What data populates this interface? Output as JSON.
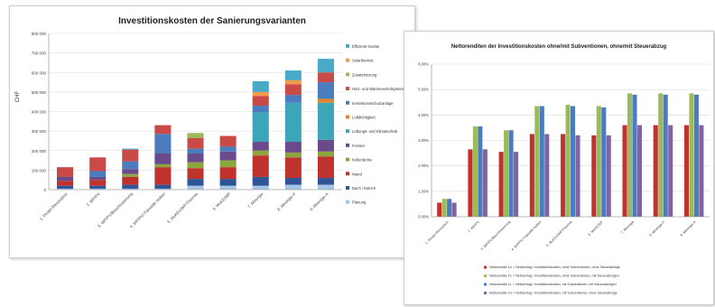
{
  "chart_data": [
    {
      "type": "bar",
      "stacked": true,
      "title": "Investitionskosten der Sanierungsvarianten",
      "ylabel": "CHF",
      "ylim": [
        0,
        800000
      ],
      "yticks": [
        "0",
        "100 000",
        "200 000",
        "300 000",
        "400 000",
        "500 000",
        "600 000",
        "700 000",
        "800 000"
      ],
      "grid": true,
      "legend_position": "right",
      "categories": [
        "1. Pinsel-Renovation",
        "2. WP/PV",
        "3. WP/PV/Beschlusserung",
        "4. WP/PV/ Fassade isoliert",
        "5. MuKEn/WP/Thermie",
        "6. MuKE/WP",
        "7. Minergie",
        "8. Minergie-P",
        "9. Minergie-A"
      ],
      "series": [
        {
          "name": "Planung",
          "color": "#a7c3e6",
          "values": [
            5000,
            5000,
            5000,
            5000,
            20000,
            20000,
            20000,
            25000,
            25000
          ]
        },
        {
          "name": "Dach / Estrich",
          "color": "#2f5597",
          "values": [
            15000,
            15000,
            20000,
            20000,
            35000,
            35000,
            45000,
            35000,
            35000
          ]
        },
        {
          "name": "Wand",
          "color": "#c0322e",
          "values": [
            25000,
            30000,
            40000,
            90000,
            55000,
            60000,
            110000,
            105000,
            110000
          ]
        },
        {
          "name": "Kellerdecke",
          "color": "#8aa63c",
          "values": [
            0,
            0,
            15000,
            15000,
            30000,
            35000,
            25000,
            25000,
            25000
          ]
        },
        {
          "name": "Fenster",
          "color": "#6b4a8c",
          "values": [
            20000,
            15000,
            25000,
            55000,
            45000,
            45000,
            45000,
            55000,
            60000
          ]
        },
        {
          "name": "Lüftungs- und Klimatechnik",
          "color": "#3aa6b8",
          "values": [
            0,
            0,
            0,
            0,
            0,
            0,
            150000,
            200000,
            190000
          ]
        },
        {
          "name": "Luftdichtigkeit",
          "color": "#e0862a",
          "values": [
            0,
            0,
            0,
            0,
            0,
            0,
            0,
            0,
            20000
          ]
        },
        {
          "name": "Immissionsschutzanlage",
          "color": "#4b7cc0",
          "values": [
            0,
            30000,
            40000,
            100000,
            25000,
            25000,
            35000,
            40000,
            85000
          ]
        },
        {
          "name": "Holz- und Wärmeverteilsystem",
          "color": "#c94a46",
          "values": [
            50000,
            70000,
            60000,
            45000,
            55000,
            55000,
            50000,
            55000,
            50000
          ]
        },
        {
          "name": "Zusatzheizung",
          "color": "#9bbb59",
          "values": [
            0,
            0,
            0,
            0,
            25000,
            0,
            0,
            0,
            0
          ]
        },
        {
          "name": "Solarthermie",
          "color": "#f29c4b",
          "values": [
            0,
            0,
            0,
            0,
            0,
            0,
            20000,
            20000,
            0
          ]
        },
        {
          "name": "Effizente Geräte",
          "color": "#49a9c6",
          "values": [
            0,
            0,
            5000,
            0,
            0,
            0,
            55000,
            50000,
            70000
          ]
        }
      ]
    },
    {
      "type": "bar",
      "title": "Nettorenditen der Investitionskosten ohne/mit Subventionen, ohne/mit Steuerabzug",
      "ylim": [
        0,
        6
      ],
      "yticks": [
        "0.00%",
        "1.00%",
        "2.00%",
        "3.00%",
        "4.00%",
        "5.00%",
        "6.00%"
      ],
      "grid": true,
      "legend_position": "bottom",
      "categories": [
        "1. Pinsel-Renovation",
        "2. WP/PV",
        "3. WP/PV/Beschlusserung",
        "4. WP/PV/ Fassade isoliert",
        "5. MuKEn/WP/Thermie",
        "6. MuKE/WP",
        "7. Minergie",
        "8. Minergie-P",
        "9. Minergie-A"
      ],
      "series": [
        {
          "name": "Nettorendite 1a",
          "description": "= Nettoertrag / Investitionskosten, ohne Subventionen, ohne Steuerabzüge",
          "color": "#c0322e",
          "values": [
            0.55,
            2.65,
            2.55,
            3.25,
            3.25,
            3.2,
            3.6,
            3.6,
            3.6
          ]
        },
        {
          "name": "Nettorendite 1b",
          "description": "= Nettoertrag / Investitionskosten, ohne Subventionen, mit Steuerabzügen",
          "color": "#9bbb59",
          "values": [
            0.7,
            3.55,
            3.4,
            4.35,
            4.4,
            4.35,
            4.85,
            4.85,
            4.85
          ]
        },
        {
          "name": "Nettorendite 1c",
          "description": "= Nettoertrag / Investitionskosten, mit Subventionen, mit Steuerabzügen",
          "color": "#4b7cc0",
          "values": [
            0.7,
            3.55,
            3.4,
            4.35,
            4.35,
            4.3,
            4.8,
            4.8,
            4.8
          ]
        },
        {
          "name": "Nettorendite 1d",
          "description": "= Nettoertrag / Investitionskosten, mit Subventionen, ohne Steuerabzüge",
          "color": "#8064a2",
          "values": [
            0.55,
            2.65,
            2.55,
            3.25,
            3.2,
            3.2,
            3.6,
            3.6,
            3.6
          ]
        }
      ]
    }
  ]
}
